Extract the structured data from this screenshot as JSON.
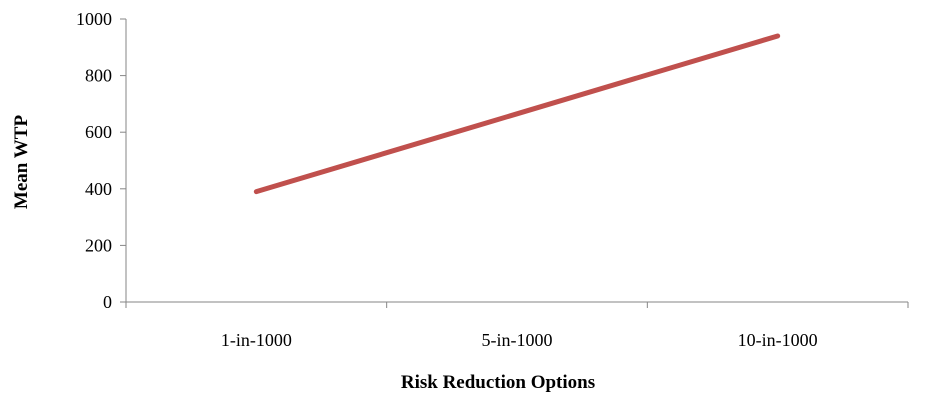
{
  "chart_data": {
    "type": "line",
    "title": "",
    "xlabel": "Risk Reduction Options",
    "ylabel": "Mean WTP",
    "categories": [
      "1-in-1000",
      "5-in-1000",
      "10-in-1000"
    ],
    "series": [
      {
        "values": [
          390,
          665,
          940
        ],
        "color": "#c0504d"
      }
    ],
    "ylim": [
      0,
      1000
    ],
    "yticks": [
      0,
      200,
      400,
      600,
      800,
      1000
    ],
    "ytick_labels": [
      "0",
      "200",
      "400",
      "600",
      "800",
      "1000"
    ],
    "grid": false,
    "legend": "none"
  }
}
